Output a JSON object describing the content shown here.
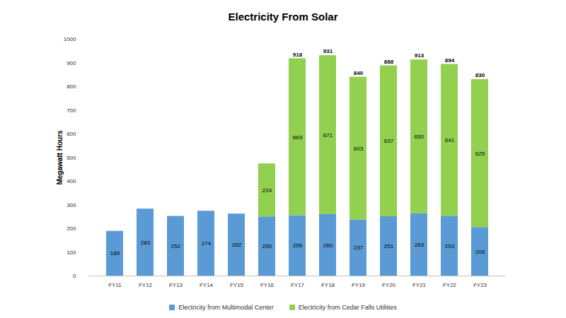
{
  "chart_data": {
    "type": "bar",
    "title": "Electricity From Solar",
    "ylabel": "Megawatt Hours",
    "categories": [
      "FY11",
      "FY12",
      "FY13",
      "FY14",
      "FY15",
      "FY16",
      "FY17",
      "FY18",
      "FY19",
      "FY20",
      "FY21",
      "FY22",
      "FY23"
    ],
    "series": [
      {
        "name": "Electricity from Multimodal Center",
        "color": "#5b9bd5",
        "values": [
          189,
          283,
          252,
          274,
          262,
          250,
          255,
          260,
          237,
          251,
          263,
          253,
          205
        ]
      },
      {
        "name": "Electricity from Cedar Falls Utilities",
        "color": "#92d050",
        "values": [
          null,
          null,
          null,
          null,
          null,
          224,
          663,
          671,
          603,
          637,
          650,
          641,
          625
        ]
      }
    ],
    "totals": [
      null,
      null,
      null,
      null,
      null,
      null,
      918,
      931,
      840,
      888,
      913,
      894,
      830
    ],
    "ylim": [
      0,
      1000
    ],
    "yticks": [
      0,
      100,
      200,
      300,
      400,
      500,
      600,
      700,
      800,
      900,
      1000
    ],
    "stacked": true,
    "data_labels": true,
    "grid": false,
    "legend": "bottom"
  }
}
